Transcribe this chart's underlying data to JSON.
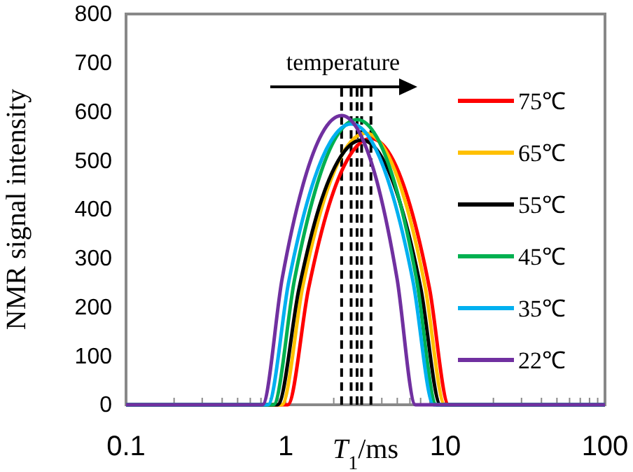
{
  "chart_data": {
    "type": "line",
    "xlabel": "T$_{1}$/ms",
    "ylabel": "NMR signal intensity",
    "log": "x",
    "xlim": [
      0.1,
      100
    ],
    "ylim": [
      0,
      800
    ],
    "xticks": [
      0.1,
      {
        "value": 0.2,
        "label": null
      },
      {
        "value": 0.3,
        "label": null
      },
      {
        "value": 0.4,
        "label": null
      },
      {
        "value": 0.5,
        "label": null
      },
      {
        "value": 0.6,
        "label": null
      },
      {
        "value": 0.7,
        "label": null
      },
      {
        "value": 0.8,
        "label": null
      },
      {
        "value": 0.9,
        "label": null
      },
      1,
      {
        "value": 2,
        "label": null
      },
      {
        "value": 3,
        "label": null
      },
      {
        "value": 4,
        "label": null
      },
      {
        "value": 5,
        "label": null
      },
      {
        "value": 6,
        "label": null
      },
      {
        "value": 7,
        "label": null
      },
      {
        "value": 8,
        "label": null
      },
      {
        "value": 9,
        "label": null
      },
      10,
      {
        "value": 20,
        "label": null
      },
      {
        "value": 30,
        "label": null
      },
      {
        "value": 40,
        "label": null
      },
      {
        "value": 50,
        "label": null
      },
      {
        "value": 60,
        "label": null
      },
      {
        "value": 70,
        "label": null
      },
      {
        "value": 80,
        "label": null
      },
      {
        "value": 90,
        "label": null
      },
      100
    ],
    "yticks": [
      0,
      100,
      200,
      300,
      400,
      500,
      600,
      700,
      800
    ],
    "grid": false,
    "legend": "right",
    "marker": "none",
    "line_style": "solid",
    "annotations": [
      "temperature"
    ],
    "ref_lines": [
      {
        "axis": "x",
        "value": 2.24,
        "color": "#000000",
        "line_style": "dashed"
      },
      {
        "axis": "x",
        "value": 2.57,
        "color": "#000000",
        "line_style": "dashed"
      },
      {
        "axis": "x",
        "value": 2.8,
        "color": "#000000",
        "line_style": "dashed"
      },
      {
        "axis": "x",
        "value": 2.99,
        "color": "#000000",
        "line_style": "dashed"
      },
      {
        "axis": "x",
        "value": 3.42,
        "color": "#000000",
        "line_style": "dashed"
      }
    ],
    "series": [
      {
        "name": "75℃",
        "color": "#ff0000",
        "x": [
          0.1,
          1.03,
          1.39,
          1.87,
          2.53,
          3.42,
          4.53,
          6.0,
          7.96,
          10.5,
          100
        ],
        "values": [
          0,
          0,
          238,
          409,
          511,
          545,
          511,
          409,
          238,
          0,
          0
        ]
      },
      {
        "name": "65℃",
        "color": "#ffc000",
        "x": [
          0.1,
          0.946,
          1.28,
          1.73,
          2.34,
          3.16,
          4.21,
          5.6,
          7.46,
          9.93,
          100
        ],
        "values": [
          0,
          0,
          243,
          417,
          521,
          556,
          521,
          417,
          243,
          0,
          0
        ]
      },
      {
        "name": "55℃",
        "color": "#000000",
        "x": [
          0.1,
          0.891,
          1.21,
          1.63,
          2.21,
          2.99,
          3.98,
          5.28,
          7.03,
          9.33,
          100
        ],
        "values": [
          0,
          0,
          237,
          407,
          508,
          542,
          508,
          407,
          237,
          0,
          0
        ]
      },
      {
        "name": "45℃",
        "color": "#00b050",
        "x": [
          0.1,
          0.839,
          1.135,
          1.53,
          2.07,
          2.8,
          3.72,
          4.97,
          6.61,
          8.79,
          100
        ],
        "values": [
          0,
          0,
          256,
          438,
          548,
          584,
          548,
          438,
          256,
          0,
          0
        ]
      },
      {
        "name": "35℃",
        "color": "#00b0f0",
        "x": [
          0.1,
          0.774,
          1.045,
          1.41,
          1.91,
          2.57,
          3.46,
          4.66,
          6.28,
          8.45,
          100
        ],
        "values": [
          0,
          0,
          252,
          431,
          539,
          575,
          539,
          431,
          252,
          0,
          0
        ]
      },
      {
        "name": "22℃",
        "color": "#7030a0",
        "x": [
          0.1,
          0.715,
          0.951,
          1.268,
          1.687,
          2.24,
          2.92,
          3.82,
          4.98,
          6.5,
          100
        ],
        "values": [
          0,
          0,
          259,
          444,
          555,
          592,
          555,
          444,
          259,
          0,
          0
        ]
      }
    ]
  }
}
